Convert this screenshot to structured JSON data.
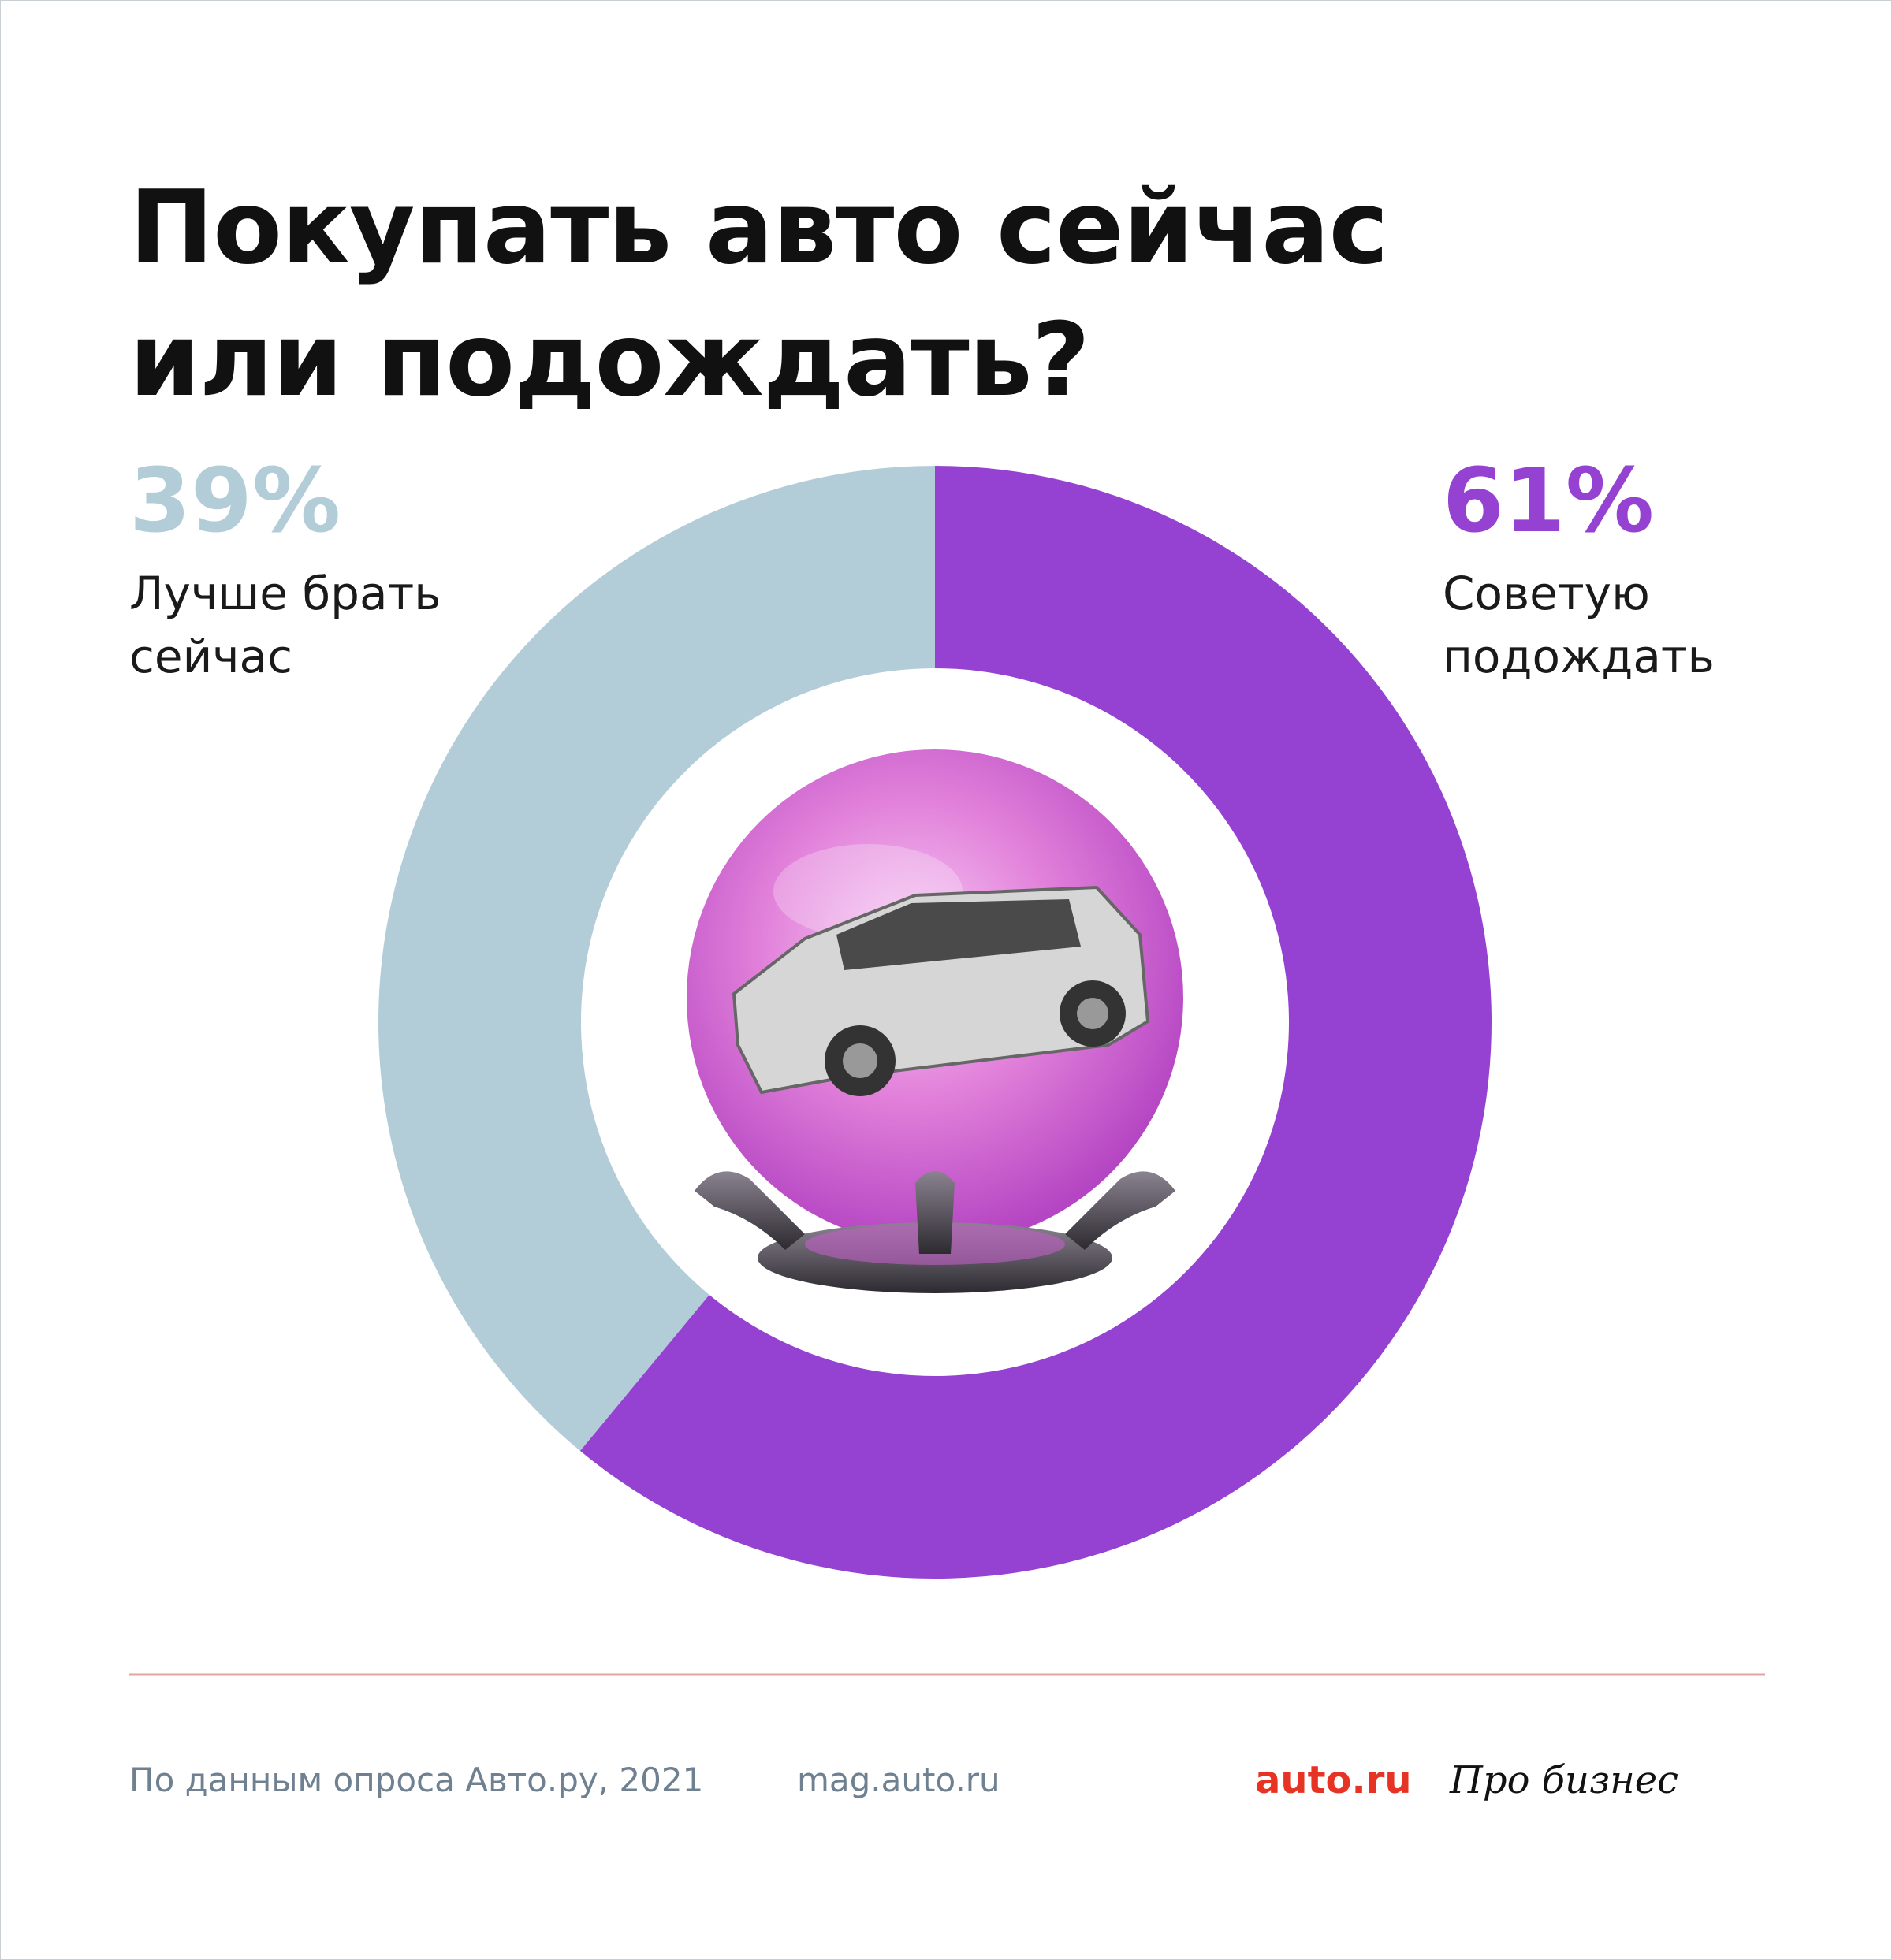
{
  "chart_data": {
    "type": "pie",
    "title": "Покупать авто сейчас или подождать?",
    "categories": [
      "Лучше брать сейчас",
      "Советую подождать"
    ],
    "values": [
      39,
      61
    ],
    "value_labels": [
      "39%",
      "61%"
    ],
    "colors": [
      "#b3cdd8",
      "#9541d1"
    ]
  },
  "footer": {
    "source": "По данным опроса Авто.ру, 2021",
    "site": "mag.auto.ru",
    "logos": [
      "auto.ru",
      "Про бизнес"
    ]
  }
}
